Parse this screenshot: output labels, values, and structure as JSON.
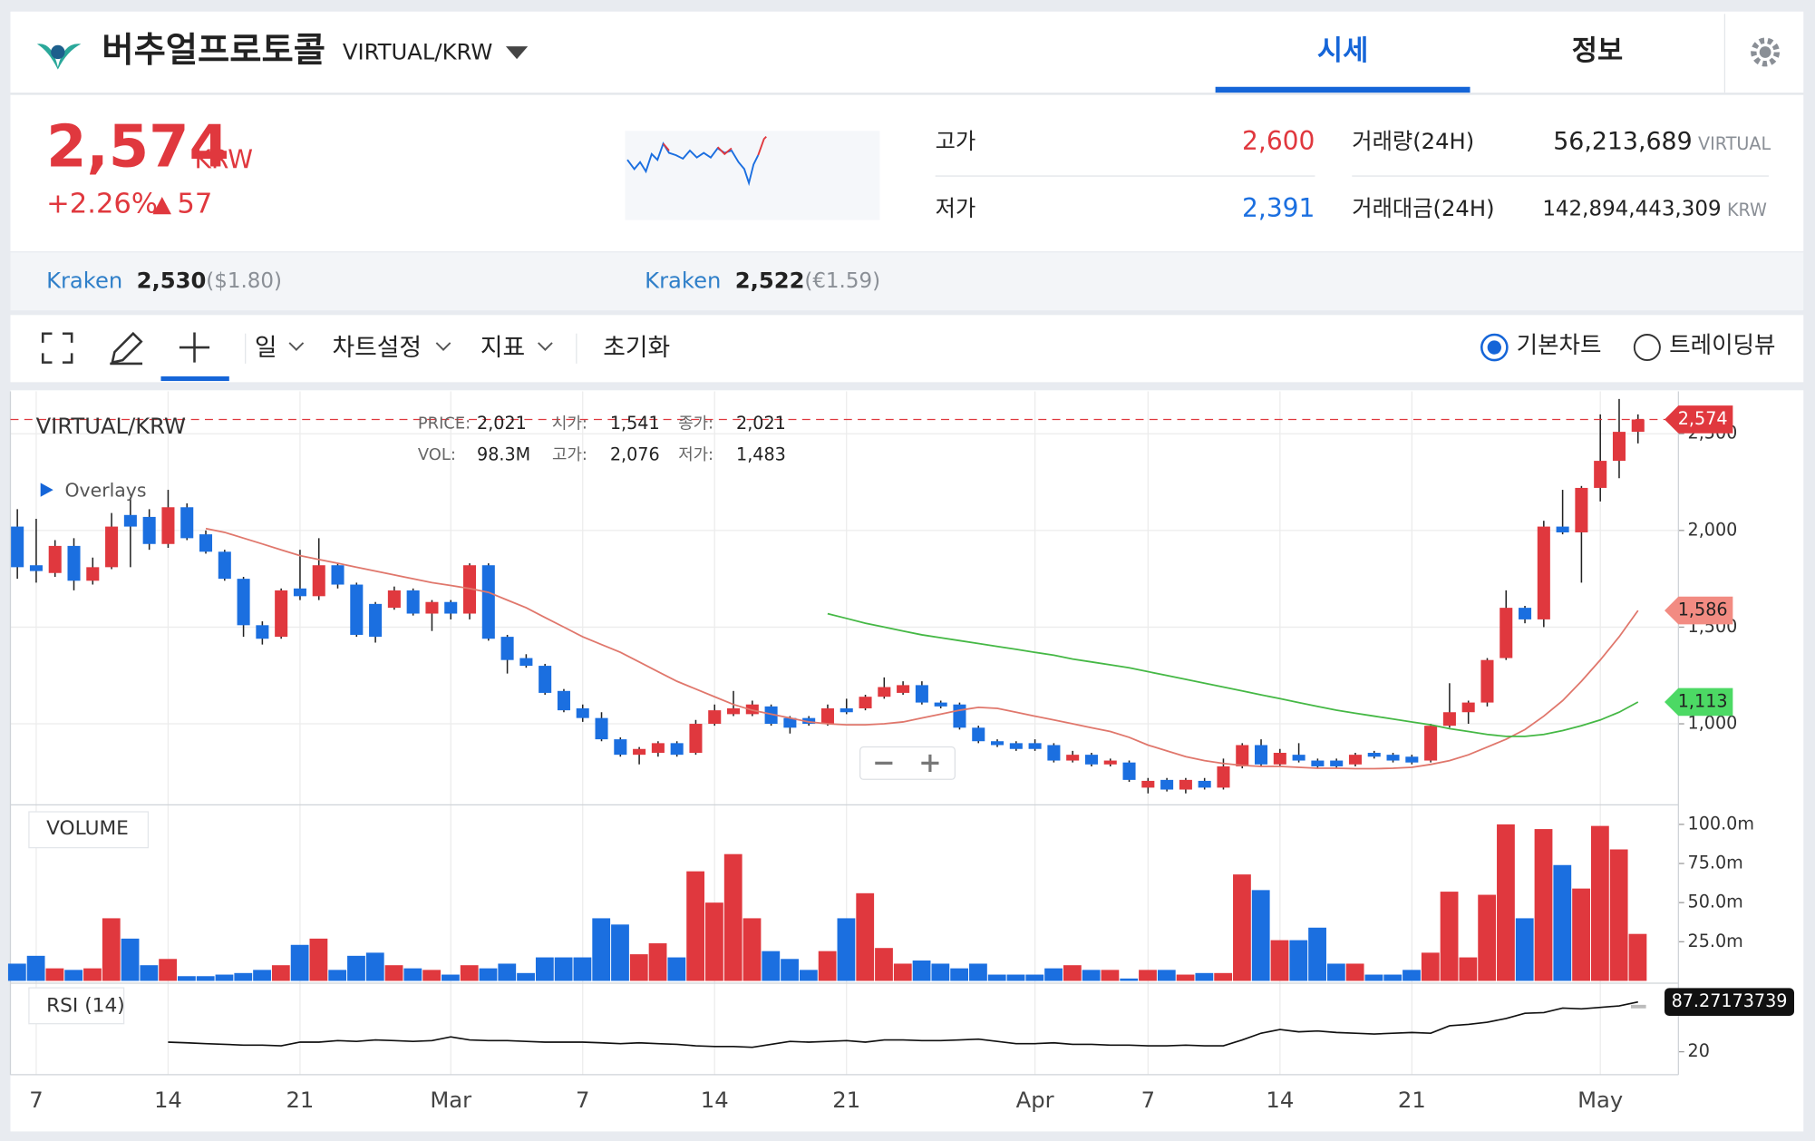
{
  "header": {
    "name": "버추얼프로토콜",
    "pair": "VIRTUAL/KRW",
    "tabs": [
      "시세",
      "정보"
    ]
  },
  "summary": {
    "price": "2,574",
    "currency": "KRW",
    "change_rate": "+2.26%",
    "change": "57",
    "high_label": "고가",
    "high": "2,600",
    "low_label": "저가",
    "low": "2,391",
    "volume_label": "거래량(24H)",
    "volume": "56,213,689",
    "volume_unit": "VIRTUAL",
    "amount_label": "거래대금(24H)",
    "amount": "142,894,443,309",
    "amount_unit": "KRW"
  },
  "exchanges": [
    {
      "name": "Kraken",
      "price": "2,530",
      "fiat": "($1.80)"
    },
    {
      "name": "Kraken",
      "price": "2,522",
      "fiat": "(€1.59)"
    }
  ],
  "toolbar": {
    "interval": "일",
    "settings": "차트설정",
    "indicators": "지표",
    "reset": "초기화",
    "modes": [
      "기본차트",
      "트레이딩뷰"
    ]
  },
  "chart_data": {
    "type": "candlestick",
    "title": "VIRTUAL/KRW",
    "overlays_label": "Overlays",
    "info": [
      {
        "label": "PRICE:",
        "value": "2,021"
      },
      {
        "label": "시가:",
        "value": "1,541"
      },
      {
        "label": "종가:",
        "value": "2,021"
      },
      {
        "label": "VOL:",
        "value": "98.3M"
      },
      {
        "label": "고가:",
        "value": "2,076"
      },
      {
        "label": "저가:",
        "value": "1,483"
      }
    ],
    "up_color": "#e0383e",
    "down_color": "#1b6fe0",
    "categories": [
      null,
      "7",
      null,
      null,
      null,
      null,
      null,
      null,
      "14",
      null,
      null,
      null,
      null,
      null,
      null,
      "21",
      null,
      null,
      null,
      null,
      null,
      null,
      null,
      "Mar",
      null,
      null,
      null,
      null,
      null,
      null,
      "7",
      null,
      null,
      null,
      null,
      null,
      null,
      "14",
      null,
      null,
      null,
      null,
      null,
      null,
      "21",
      null,
      null,
      null,
      null,
      null,
      null,
      null,
      null,
      null,
      "Apr",
      null,
      null,
      null,
      null,
      null,
      "7",
      null,
      null,
      null,
      null,
      null,
      null,
      "14",
      null,
      null,
      null,
      null,
      null,
      null,
      "21",
      null,
      null,
      null,
      null,
      null,
      null,
      null,
      null,
      null,
      "May",
      null,
      null
    ],
    "open": [
      2020,
      1820,
      1780,
      1920,
      1740,
      1810,
      2080,
      2070,
      1930,
      2120,
      1980,
      1890,
      1750,
      1510,
      1450,
      1700,
      1660,
      1820,
      1720,
      1620,
      1600,
      1690,
      1570,
      1630,
      1570,
      1820,
      1450,
      1340,
      1300,
      1170,
      1080,
      1030,
      920,
      840,
      850,
      900,
      850,
      1000,
      1050,
      1050,
      1090,
      1030,
      1030,
      1000,
      1080,
      1080,
      1140,
      1160,
      1200,
      1110,
      1100,
      980,
      910,
      900,
      900,
      890,
      810,
      840,
      790,
      800,
      670,
      710,
      660,
      705,
      670,
      780,
      890,
      790,
      840,
      810,
      810,
      790,
      850,
      840,
      830,
      810,
      990,
      1060,
      1110,
      1340,
      1600,
      1540,
      2020,
      1990,
      2220,
      2360,
      2510
    ],
    "high": [
      2110,
      2060,
      1950,
      1960,
      1860,
      2090,
      2170,
      2110,
      2210,
      2140,
      2000,
      1900,
      1760,
      1530,
      1700,
      1900,
      1960,
      1830,
      1730,
      1630,
      1710,
      1700,
      1640,
      1640,
      1830,
      1830,
      1460,
      1360,
      1310,
      1180,
      1100,
      1060,
      930,
      880,
      910,
      910,
      1020,
      1100,
      1170,
      1120,
      1100,
      1040,
      1040,
      1100,
      1130,
      1150,
      1240,
      1220,
      1220,
      1120,
      1110,
      990,
      920,
      910,
      920,
      900,
      860,
      850,
      820,
      810,
      720,
      720,
      720,
      720,
      820,
      900,
      920,
      870,
      900,
      820,
      820,
      850,
      860,
      850,
      840,
      1000,
      1210,
      1120,
      1340,
      1690,
      1610,
      2050,
      2210,
      2230,
      2600,
      2680,
      2600
    ],
    "low": [
      1750,
      1730,
      1760,
      1690,
      1720,
      1800,
      1810,
      1900,
      1910,
      1950,
      1880,
      1740,
      1450,
      1410,
      1440,
      1640,
      1640,
      1700,
      1450,
      1420,
      1590,
      1560,
      1480,
      1540,
      1540,
      1430,
      1260,
      1290,
      1150,
      1060,
      1010,
      910,
      830,
      790,
      830,
      830,
      840,
      990,
      1040,
      1040,
      990,
      950,
      990,
      990,
      1050,
      1070,
      1130,
      1150,
      1100,
      1080,
      970,
      900,
      880,
      860,
      860,
      800,
      800,
      780,
      780,
      700,
      640,
      650,
      640,
      660,
      660,
      770,
      780,
      780,
      800,
      770,
      770,
      780,
      820,
      800,
      790,
      800,
      980,
      1000,
      1090,
      1330,
      1520,
      1500,
      1980,
      1730,
      2150,
      2270,
      2450
    ],
    "close": [
      1810,
      1790,
      1920,
      1740,
      1810,
      2020,
      2020,
      1930,
      2120,
      1960,
      1890,
      1750,
      1510,
      1440,
      1690,
      1660,
      1820,
      1720,
      1460,
      1450,
      1690,
      1570,
      1630,
      1570,
      1820,
      1440,
      1330,
      1300,
      1160,
      1070,
      1030,
      920,
      840,
      870,
      900,
      840,
      1000,
      1070,
      1080,
      1100,
      1000,
      980,
      1000,
      1080,
      1060,
      1140,
      1190,
      1200,
      1110,
      1090,
      980,
      910,
      890,
      870,
      870,
      810,
      840,
      790,
      810,
      710,
      705,
      660,
      710,
      670,
      780,
      890,
      790,
      850,
      810,
      780,
      780,
      840,
      830,
      810,
      800,
      990,
      1060,
      1110,
      1330,
      1600,
      1540,
      2020,
      1990,
      2220,
      2360,
      2510,
      2574
    ],
    "close_labels": [
      null,
      null,
      null,
      null,
      null,
      null,
      null,
      null,
      null,
      null,
      null,
      null,
      null,
      null,
      null,
      null,
      null,
      null,
      null,
      null,
      null,
      null,
      null,
      null,
      null,
      null,
      null,
      null,
      null,
      null,
      null,
      null,
      null,
      null,
      null,
      null,
      null,
      null,
      null,
      null,
      null,
      null,
      null,
      null,
      null,
      null,
      null,
      null,
      null,
      null,
      null,
      null,
      null,
      null,
      null,
      null,
      null,
      null,
      null,
      null,
      null,
      null,
      null,
      null,
      null,
      null,
      null,
      null,
      null,
      null,
      null,
      null,
      null,
      null,
      null,
      null,
      null,
      null,
      null,
      null,
      null,
      null,
      null,
      null,
      null,
      null,
      "2,574"
    ],
    "ylim": [
      581,
      2719
    ],
    "yticks": [
      {
        "value": 2500,
        "label": "2,500"
      },
      {
        "value": 2000,
        "label": "2,000"
      },
      {
        "value": 1500,
        "label": "1,500"
      },
      {
        "value": 1000,
        "label": "1,000"
      }
    ],
    "overlays": [
      {
        "color": "#e0776c",
        "tag_color": "#f28b82",
        "values": [
          null,
          null,
          null,
          null,
          null,
          null,
          null,
          null,
          null,
          null,
          2010,
          1990,
          1960,
          1930,
          1900,
          1870,
          1850,
          1830,
          1810,
          1790,
          1770,
          1750,
          1730,
          1715,
          1700,
          1680,
          1640,
          1600,
          1550,
          1500,
          1450,
          1410,
          1370,
          1320,
          1270,
          1220,
          1180,
          1140,
          1100,
          1070,
          1050,
          1030,
          1010,
          1000,
          995,
          995,
          1000,
          1010,
          1030,
          1050,
          1070,
          1085,
          1080,
          1060,
          1040,
          1020,
          1000,
          980,
          960,
          930,
          890,
          860,
          830,
          810,
          795,
          785,
          780,
          780,
          775,
          770,
          770,
          768,
          768,
          770,
          775,
          790,
          810,
          840,
          880,
          920,
          970,
          1040,
          1120,
          1220,
          1330,
          1450,
          1586
        ],
        "value_labels": [
          null,
          null,
          null,
          null,
          null,
          null,
          null,
          null,
          null,
          null,
          null,
          null,
          null,
          null,
          null,
          null,
          null,
          null,
          null,
          null,
          null,
          null,
          null,
          null,
          null,
          null,
          null,
          null,
          null,
          null,
          null,
          null,
          null,
          null,
          null,
          null,
          null,
          null,
          null,
          null,
          null,
          null,
          null,
          null,
          null,
          null,
          null,
          null,
          null,
          null,
          null,
          null,
          null,
          null,
          null,
          null,
          null,
          null,
          null,
          null,
          null,
          null,
          null,
          null,
          null,
          null,
          null,
          null,
          null,
          null,
          null,
          null,
          null,
          null,
          null,
          null,
          null,
          null,
          null,
          null,
          null,
          null,
          null,
          null,
          null,
          null,
          "1,586"
        ]
      },
      {
        "color": "#45b845",
        "tag_color": "#4cd964",
        "values": [
          null,
          null,
          null,
          null,
          null,
          null,
          null,
          null,
          null,
          null,
          null,
          null,
          null,
          null,
          null,
          null,
          null,
          null,
          null,
          null,
          null,
          null,
          null,
          null,
          null,
          null,
          null,
          null,
          null,
          null,
          null,
          null,
          null,
          null,
          null,
          null,
          null,
          null,
          null,
          null,
          null,
          null,
          null,
          1570,
          1545,
          1520,
          1500,
          1480,
          1460,
          1445,
          1430,
          1415,
          1400,
          1385,
          1370,
          1355,
          1335,
          1320,
          1305,
          1290,
          1270,
          1250,
          1230,
          1210,
          1190,
          1170,
          1150,
          1130,
          1110,
          1090,
          1070,
          1055,
          1040,
          1025,
          1010,
          995,
          975,
          960,
          945,
          935,
          935,
          945,
          965,
          990,
          1020,
          1060,
          1113
        ],
        "value_labels": [
          null,
          null,
          null,
          null,
          null,
          null,
          null,
          null,
          null,
          null,
          null,
          null,
          null,
          null,
          null,
          null,
          null,
          null,
          null,
          null,
          null,
          null,
          null,
          null,
          null,
          null,
          null,
          null,
          null,
          null,
          null,
          null,
          null,
          null,
          null,
          null,
          null,
          null,
          null,
          null,
          null,
          null,
          null,
          null,
          null,
          null,
          null,
          null,
          null,
          null,
          null,
          null,
          null,
          null,
          null,
          null,
          null,
          null,
          null,
          null,
          null,
          null,
          null,
          null,
          null,
          null,
          null,
          null,
          null,
          null,
          null,
          null,
          null,
          null,
          null,
          null,
          null,
          null,
          null,
          null,
          null,
          null,
          null,
          null,
          null,
          null,
          "1,113"
        ]
      }
    ],
    "volume": {
      "title": "VOLUME",
      "values": [
        11,
        16,
        8,
        7,
        8,
        40,
        27,
        10,
        14,
        3,
        3,
        4,
        5,
        7,
        10,
        23,
        27,
        7,
        16,
        18,
        10,
        8,
        7,
        4,
        10,
        8,
        11,
        5,
        15,
        15,
        15,
        40,
        36,
        17,
        24,
        15,
        70,
        50,
        81,
        40,
        19,
        14,
        7,
        19,
        40,
        56,
        21,
        11,
        13,
        11,
        8,
        11,
        4,
        4,
        4,
        8,
        10,
        7,
        7,
        1.5,
        7,
        7,
        4,
        5,
        5,
        68,
        58,
        26,
        26,
        34,
        11,
        11,
        4,
        4,
        7,
        18,
        57,
        15,
        55,
        100,
        40,
        97,
        74,
        59,
        99,
        84,
        30
      ],
      "ylim": [
        0,
        111
      ],
      "yticks": [
        {
          "value": 100,
          "label": "100.0m"
        },
        {
          "value": 75,
          "label": "75.0m"
        },
        {
          "value": 50,
          "label": "50.0m"
        },
        {
          "value": 25,
          "label": "25.0m"
        }
      ]
    },
    "rsi": {
      "title": "RSI (14)",
      "color": "#111111",
      "values": [
        null,
        null,
        null,
        null,
        null,
        null,
        null,
        null,
        33,
        32,
        31,
        30,
        29,
        29,
        28,
        33,
        33,
        35,
        34,
        36,
        35,
        34,
        35,
        40,
        36,
        35,
        35,
        34,
        33,
        33,
        33,
        32,
        31,
        32,
        31,
        30,
        28,
        27,
        27,
        26,
        30,
        34,
        33,
        34,
        35,
        33,
        36,
        36,
        35,
        35,
        36,
        37,
        34,
        31,
        31,
        32,
        30,
        30,
        29,
        29,
        28,
        28,
        29,
        28,
        28,
        36,
        45,
        50,
        47,
        48,
        46,
        45,
        44,
        45,
        46,
        45,
        55,
        57,
        60,
        65,
        72,
        73,
        79,
        78,
        80,
        82,
        87.27173739
      ],
      "ylim": [
        -11,
        108
      ],
      "yticks": [
        20
      ]
    }
  }
}
